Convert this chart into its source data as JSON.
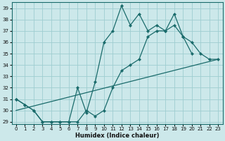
{
  "xlabel": "Humidex (Indice chaleur)",
  "bg_color": "#cce8ea",
  "grid_color": "#9ecdd0",
  "line_color": "#1a6b6b",
  "xlim": [
    -0.5,
    23.5
  ],
  "ylim": [
    28.8,
    39.5
  ],
  "yticks": [
    29,
    30,
    31,
    32,
    33,
    34,
    35,
    36,
    37,
    38,
    39
  ],
  "xticks": [
    0,
    1,
    2,
    3,
    4,
    5,
    6,
    7,
    8,
    9,
    10,
    11,
    12,
    13,
    14,
    15,
    16,
    17,
    18,
    19,
    20,
    21,
    22,
    23
  ],
  "line_top": {
    "x": [
      0,
      1,
      2,
      3,
      4,
      5,
      6,
      7,
      8,
      9,
      10,
      11,
      12,
      13,
      14,
      15,
      16,
      17,
      18,
      19,
      20
    ],
    "y": [
      31.0,
      30.5,
      30.0,
      29.0,
      29.0,
      29.0,
      29.0,
      32.0,
      29.8,
      32.5,
      36.0,
      37.0,
      39.2,
      37.5,
      38.5,
      37.0,
      37.5,
      37.0,
      38.5,
      36.5,
      35.0
    ]
  },
  "line_mid": {
    "x": [
      0,
      1,
      2,
      3,
      4,
      5,
      6,
      7,
      8,
      9,
      10,
      11,
      12,
      13,
      14,
      15,
      16,
      17,
      18,
      19,
      20,
      21,
      22,
      23
    ],
    "y": [
      31.0,
      30.5,
      30.0,
      29.0,
      29.0,
      29.0,
      29.0,
      29.0,
      30.0,
      29.5,
      30.0,
      32.0,
      33.5,
      34.0,
      34.5,
      36.5,
      37.0,
      37.0,
      37.5,
      36.5,
      36.0,
      35.0,
      34.5,
      34.5
    ]
  },
  "line_bot": {
    "x": [
      0,
      23
    ],
    "y": [
      30.0,
      34.5
    ]
  }
}
